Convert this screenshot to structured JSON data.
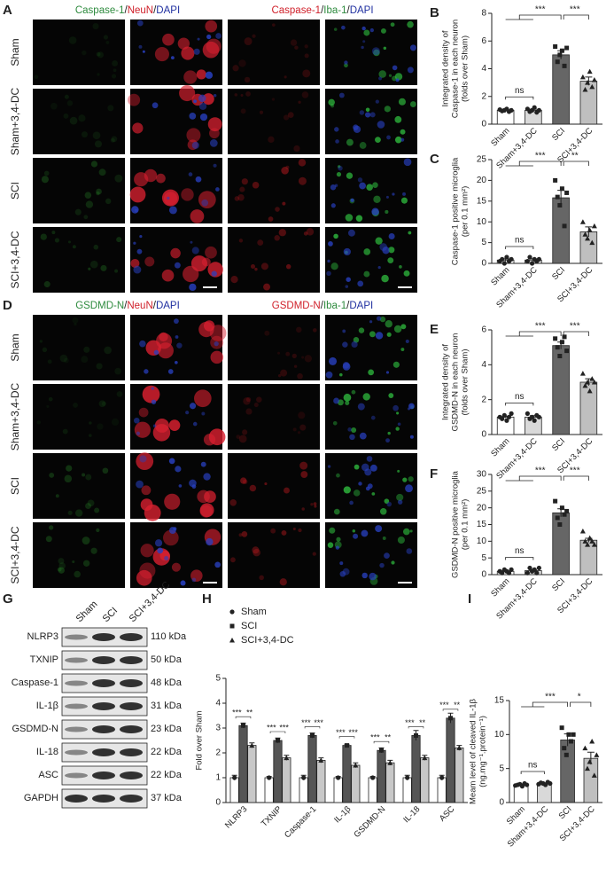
{
  "image_panels": [
    {
      "letter": "A",
      "headers": [
        [
          {
            "text": "Caspase-1",
            "color": "#2e8b3e"
          },
          {
            "text": "/",
            "color": "#222"
          },
          {
            "text": "NeuN",
            "color": "#d0202a"
          },
          {
            "text": "/",
            "color": "#222"
          },
          {
            "text": "DAPI",
            "color": "#2030a0"
          }
        ],
        [
          {
            "text": "Caspase-1",
            "color": "#d0202a"
          },
          {
            "text": "/",
            "color": "#222"
          },
          {
            "text": "Iba-1",
            "color": "#2e8b3e"
          },
          {
            "text": "/",
            "color": "#222"
          },
          {
            "text": "DAPI",
            "color": "#2030a0"
          }
        ]
      ],
      "rows": [
        "Sham",
        "Sham+3,4-DC",
        "SCI",
        "SCI+3,4-DC"
      ]
    },
    {
      "letter": "D",
      "headers": [
        [
          {
            "text": "GSDMD-N",
            "color": "#2e8b3e"
          },
          {
            "text": "/",
            "color": "#222"
          },
          {
            "text": "NeuN",
            "color": "#d0202a"
          },
          {
            "text": "/",
            "color": "#222"
          },
          {
            "text": "DAPI",
            "color": "#2030a0"
          }
        ],
        [
          {
            "text": "GSDMD-N",
            "color": "#d0202a"
          },
          {
            "text": "/",
            "color": "#222"
          },
          {
            "text": "Iba-1",
            "color": "#2e8b3e"
          },
          {
            "text": "/",
            "color": "#222"
          },
          {
            "text": "DAPI",
            "color": "#2030a0"
          }
        ]
      ],
      "rows": [
        "Sham",
        "Sham+3,4-DC",
        "SCI",
        "SCI+3,4-DC"
      ]
    }
  ],
  "blot": {
    "letter": "G",
    "lanes": [
      "Sham",
      "SCI",
      "SCI+3,4-DC"
    ],
    "bands": [
      {
        "name": "NLRP3",
        "size": "110 kDa"
      },
      {
        "name": "TXNIP",
        "size": "50 kDa"
      },
      {
        "name": "Caspase-1",
        "size": "48 kDa"
      },
      {
        "name": "IL-1β",
        "size": "31 kDa"
      },
      {
        "name": "GSDMD-N",
        "size": "23 kDa"
      },
      {
        "name": "IL-18",
        "size": "22 kDa"
      },
      {
        "name": "ASC",
        "size": "22 kDa"
      },
      {
        "name": "GAPDH",
        "size": "37 kDa"
      }
    ]
  },
  "chart_data": [
    {
      "type": "bar",
      "letter": "B",
      "ylabel": [
        "Integrated density of",
        "Caspase-1 in each neuron",
        "(folds over Sham)"
      ],
      "categories": [
        "Sham",
        "Sham+3,4-DC",
        "SCI",
        "SCI+3,4-DC"
      ],
      "colors": [
        "#ffffff",
        "#d9d9d9",
        "#666666",
        "#bfbfbf"
      ],
      "markers": [
        "circle",
        "circle",
        "square",
        "triangle"
      ],
      "values": [
        1.0,
        1.0,
        5.0,
        3.1
      ],
      "errors": [
        0.05,
        0.08,
        0.3,
        0.3
      ],
      "points": [
        [
          1.05,
          0.95,
          1.0,
          1.1,
          0.9,
          1.0
        ],
        [
          1.1,
          0.9,
          1.0,
          1.2,
          0.85,
          1.0
        ],
        [
          5.6,
          4.5,
          5.0,
          5.3,
          4.2,
          5.5
        ],
        [
          3.4,
          2.5,
          3.0,
          3.8,
          2.7,
          3.2
        ]
      ],
      "sig_labels": [
        "ns",
        "***",
        "***"
      ],
      "ylim": [
        0,
        8
      ],
      "yticks": [
        0,
        2,
        4,
        6,
        8
      ]
    },
    {
      "type": "bar",
      "letter": "C",
      "ylabel": [
        "Caspase-1 positive microglia",
        "(per 0.1 mm²)"
      ],
      "categories": [
        "Sham",
        "Sham+3,4-DC",
        "SCI",
        "SCI+3,4-DC"
      ],
      "colors": [
        "#ffffff",
        "#d9d9d9",
        "#666666",
        "#bfbfbf"
      ],
      "markers": [
        "circle",
        "circle",
        "square",
        "triangle"
      ],
      "values": [
        0.8,
        0.8,
        15.8,
        7.6
      ],
      "errors": [
        0.3,
        0.3,
        1.8,
        1.2
      ],
      "points": [
        [
          0.5,
          1.0,
          0,
          1.5,
          0.5,
          1.0
        ],
        [
          0.5,
          1.5,
          0,
          1.0,
          0.5,
          1.0
        ],
        [
          20,
          16,
          14,
          18,
          9,
          17
        ],
        [
          10,
          7,
          6,
          8,
          5,
          9
        ]
      ],
      "sig_labels": [
        "ns",
        "***",
        "**"
      ],
      "ylim": [
        0,
        25
      ],
      "yticks": [
        0,
        5,
        10,
        15,
        20,
        25
      ]
    },
    {
      "type": "bar",
      "letter": "E",
      "ylabel": [
        "Integrated density of",
        "GSDMD-N in each neuron",
        "(folds over Sham)"
      ],
      "categories": [
        "Sham",
        "Sham+3,4-DC",
        "SCI",
        "SCI+3,4-DC"
      ],
      "colors": [
        "#ffffff",
        "#d9d9d9",
        "#666666",
        "#bfbfbf"
      ],
      "markers": [
        "circle",
        "circle",
        "square",
        "triangle"
      ],
      "values": [
        1.0,
        1.0,
        5.1,
        3.0
      ],
      "errors": [
        0.05,
        0.08,
        0.2,
        0.2
      ],
      "points": [
        [
          1.0,
          0.9,
          1.1,
          0.8,
          1.0,
          1.2
        ],
        [
          1.2,
          0.9,
          1.0,
          0.8,
          1.1,
          1.0
        ],
        [
          5.5,
          5.0,
          4.5,
          5.3,
          5.6,
          4.8
        ],
        [
          3.5,
          2.8,
          3.0,
          2.5,
          3.2,
          3.0
        ]
      ],
      "sig_labels": [
        "ns",
        "***",
        "***"
      ],
      "ylim": [
        0,
        6
      ],
      "yticks": [
        0,
        2,
        4,
        6
      ]
    },
    {
      "type": "bar",
      "letter": "F",
      "ylabel": [
        "GSDMD-N positive microglia",
        "(per 0.1 mm²)"
      ],
      "categories": [
        "Sham",
        "Sham+3,4-DC",
        "SCI",
        "SCI+3,4-DC"
      ],
      "colors": [
        "#ffffff",
        "#d9d9d9",
        "#666666",
        "#bfbfbf"
      ],
      "markers": [
        "circle",
        "circle",
        "square",
        "triangle"
      ],
      "values": [
        1.0,
        1.2,
        18.5,
        10.3
      ],
      "errors": [
        0.2,
        0.3,
        1.2,
        0.6
      ],
      "points": [
        [
          1,
          0.5,
          1.5,
          1,
          0.5,
          1.5
        ],
        [
          0.5,
          2,
          1,
          1.5,
          0.5,
          2
        ],
        [
          22,
          17,
          15,
          20,
          18,
          19
        ],
        [
          13,
          10,
          9,
          11,
          10,
          9
        ]
      ],
      "sig_labels": [
        "ns",
        "***",
        "***"
      ],
      "ylim": [
        0,
        30
      ],
      "yticks": [
        0,
        5,
        10,
        15,
        20,
        25,
        30
      ]
    },
    {
      "type": "bar",
      "letter": "H",
      "ylabel": [
        "Fold over Sham"
      ],
      "categories": [
        "NLRP3",
        "TXNIP",
        "Caspase-1",
        "IL-1β",
        "GSDMD-N",
        "IL-18",
        "ASC"
      ],
      "markers": [
        "circle",
        "square",
        "triangle"
      ],
      "series": [
        {
          "name": "Sham",
          "color": "#ffffff",
          "values": [
            1.0,
            1.0,
            1.0,
            1.0,
            1.0,
            1.0,
            1.0
          ],
          "errors": [
            0.1,
            0.05,
            0.1,
            0.05,
            0.05,
            0.1,
            0.1
          ]
        },
        {
          "name": "SCI",
          "color": "#555555",
          "values": [
            3.1,
            2.5,
            2.7,
            2.3,
            2.1,
            2.7,
            3.4
          ],
          "errors": [
            0.1,
            0.1,
            0.1,
            0.05,
            0.1,
            0.2,
            0.2
          ]
        },
        {
          "name": "SCI+3,4-DC",
          "color": "#c8c8c8",
          "values": [
            2.3,
            1.8,
            1.7,
            1.5,
            1.6,
            1.8,
            2.2
          ],
          "errors": [
            0.1,
            0.1,
            0.1,
            0.1,
            0.1,
            0.1,
            0.1
          ]
        }
      ],
      "sig_labels": [
        [
          "***",
          "**"
        ],
        [
          "***",
          "***"
        ],
        [
          "***",
          "***"
        ],
        [
          "***",
          "***"
        ],
        [
          "***",
          "**"
        ],
        [
          "***",
          "**"
        ],
        [
          "***",
          "**"
        ]
      ],
      "ylim": [
        0,
        5
      ],
      "yticks": [
        0,
        1,
        2,
        3,
        4,
        5
      ]
    },
    {
      "type": "bar",
      "letter": "I",
      "ylabel": [
        "Meam level of cleaved IL-1β",
        "(ng.mg⁻¹.protein⁻¹)"
      ],
      "categories": [
        "Sham",
        "Sham+3,4-DC",
        "SCI",
        "SCI+3,4-DC"
      ],
      "colors": [
        "#ffffff",
        "#d9d9d9",
        "#666666",
        "#bfbfbf"
      ],
      "markers": [
        "circle",
        "circle",
        "square",
        "triangle"
      ],
      "values": [
        2.6,
        2.8,
        9.2,
        6.5
      ],
      "errors": [
        0.1,
        0.1,
        0.9,
        0.9
      ],
      "points": [
        [
          2.5,
          2.6,
          2.7,
          2.4,
          2.8,
          2.6
        ],
        [
          2.7,
          2.9,
          2.8,
          2.6,
          3.0,
          2.8
        ],
        [
          11,
          8,
          7,
          10,
          9,
          10
        ],
        [
          8,
          5,
          6,
          9,
          4,
          7
        ]
      ],
      "sig_labels": [
        "ns",
        "***",
        "*"
      ],
      "ylim": [
        0,
        15
      ],
      "yticks": [
        0,
        5,
        10,
        15
      ]
    }
  ]
}
